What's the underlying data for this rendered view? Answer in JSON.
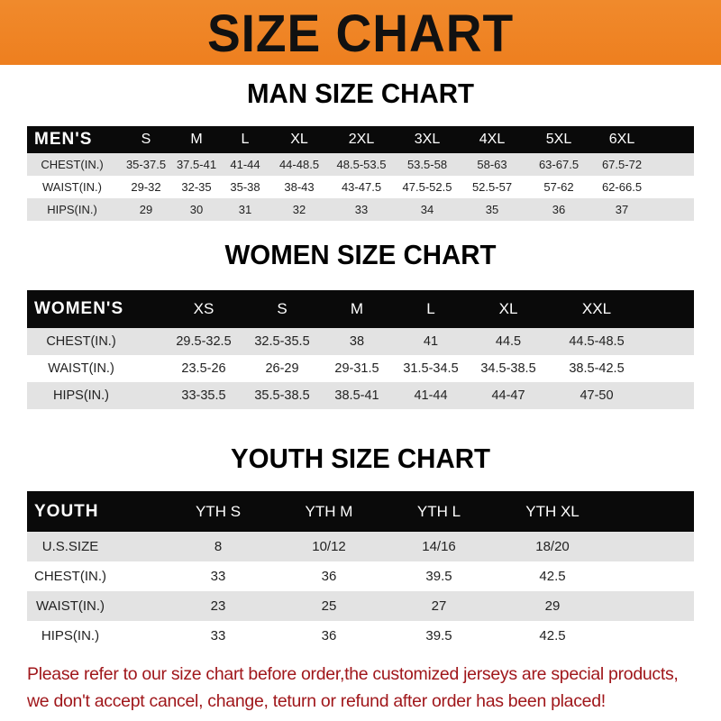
{
  "title": "SIZE CHART",
  "colors": {
    "banner": "#ee7f1f",
    "header_row": "#0a0a0a",
    "stripe": "#e3e3e3",
    "note": "#a0171b"
  },
  "men": {
    "title": "MAN SIZE CHART",
    "header": [
      "MEN'S",
      "S",
      "M",
      "L",
      "XL",
      "2XL",
      "3XL",
      "4XL",
      "5XL",
      "6XL"
    ],
    "rows": [
      [
        "CHEST(IN.)",
        "35-37.5",
        "37.5-41",
        "41-44",
        "44-48.5",
        "48.5-53.5",
        "53.5-58",
        "58-63",
        "63-67.5",
        "67.5-72"
      ],
      [
        "WAIST(IN.)",
        "29-32",
        "32-35",
        "35-38",
        "38-43",
        "43-47.5",
        "47.5-52.5",
        "52.5-57",
        "57-62",
        "62-66.5"
      ],
      [
        "HIPS(IN.)",
        "29",
        "30",
        "31",
        "32",
        "33",
        "34",
        "35",
        "36",
        "37"
      ]
    ]
  },
  "women": {
    "title": "WOMEN SIZE CHART",
    "header": [
      "WOMEN'S",
      "XS",
      "S",
      "M",
      "L",
      "XL",
      "XXL"
    ],
    "rows": [
      [
        "CHEST(IN.)",
        "29.5-32.5",
        "32.5-35.5",
        "38",
        "41",
        "44.5",
        "44.5-48.5"
      ],
      [
        "WAIST(IN.)",
        "23.5-26",
        "26-29",
        "29-31.5",
        "31.5-34.5",
        "34.5-38.5",
        "38.5-42.5"
      ],
      [
        "HIPS(IN.)",
        "33-35.5",
        "35.5-38.5",
        "38.5-41",
        "41-44",
        "44-47",
        "47-50"
      ]
    ]
  },
  "youth": {
    "title": "YOUTH SIZE CHART",
    "header": [
      "YOUTH",
      "YTH S",
      "YTH M",
      "YTH L",
      "YTH XL"
    ],
    "rows": [
      [
        "U.S.SIZE",
        "8",
        "10/12",
        "14/16",
        "18/20"
      ],
      [
        "CHEST(IN.)",
        "33",
        "36",
        "39.5",
        "42.5"
      ],
      [
        "WAIST(IN.)",
        "23",
        "25",
        "27",
        "29"
      ],
      [
        "HIPS(IN.)",
        "33",
        "36",
        "39.5",
        "42.5"
      ]
    ]
  },
  "note": "Please refer to our size chart before order,the customized jerseys are special products, we don't accept cancel, change, teturn or refund after order has been placed!"
}
